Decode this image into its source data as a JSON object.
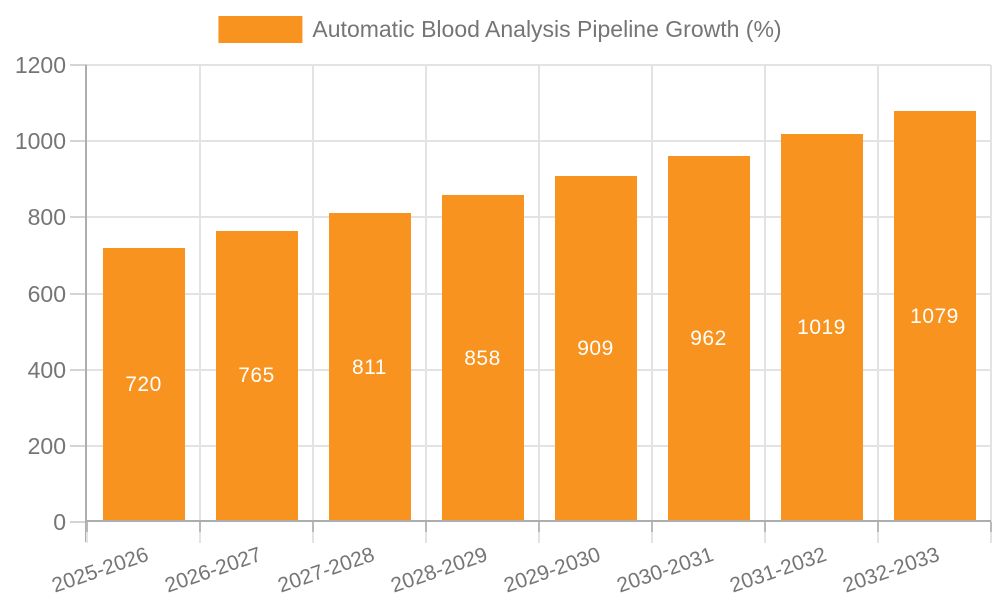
{
  "legend": {
    "label": "Automatic Blood Analysis Pipeline Growth (%)"
  },
  "chart_data": {
    "type": "bar",
    "title": "Automatic Blood Analysis Pipeline Growth (%)",
    "categories": [
      "2025-2026",
      "2026-2027",
      "2027-2028",
      "2028-2029",
      "2029-2030",
      "2030-2031",
      "2031-2032",
      "2032-2033"
    ],
    "values": [
      720,
      765,
      811,
      858,
      909,
      962,
      1019,
      1079
    ],
    "xlabel": "",
    "ylabel": "",
    "ylim": [
      0,
      1200
    ],
    "yticks": [
      0,
      200,
      400,
      600,
      800,
      1000,
      1200
    ],
    "grid": true,
    "legend_position": "top-center",
    "colors": {
      "bar": "#F7931E",
      "value_label": "#FFFFFF",
      "grid": "#E3E3E3",
      "axis": "#ADADAD",
      "ytick_mark": "#D4D4D4",
      "xtick_mark_dark": "#B9B9B9",
      "xtick_mark_light": "#E3E3E3",
      "tick_label": "#757575"
    }
  }
}
